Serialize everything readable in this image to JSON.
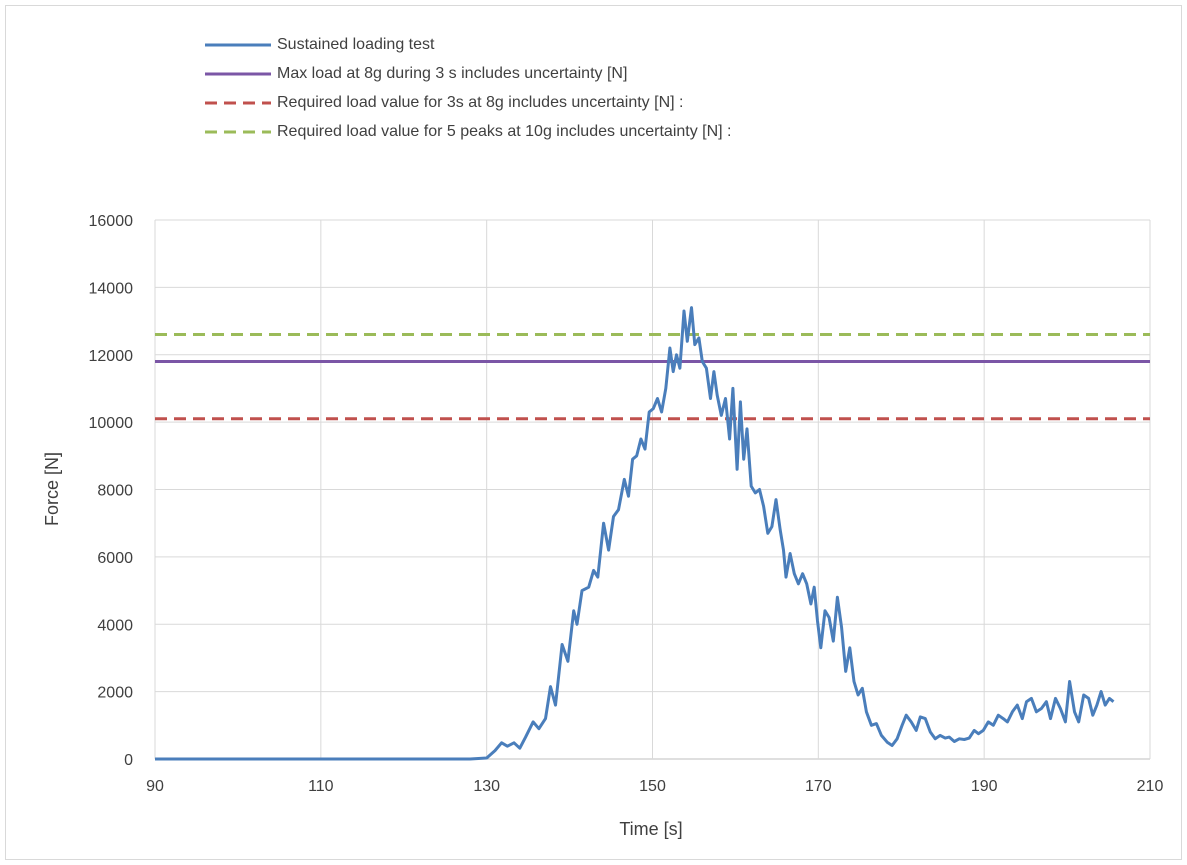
{
  "chart_data": {
    "type": "line",
    "title": "",
    "xlabel": "Time [s]",
    "ylabel": "Force [N]",
    "xlim": [
      90,
      210
    ],
    "ylim": [
      0,
      16000
    ],
    "x_ticks": [
      90,
      110,
      130,
      150,
      170,
      190,
      210
    ],
    "y_ticks": [
      0,
      2000,
      4000,
      6000,
      8000,
      10000,
      12000,
      14000,
      16000
    ],
    "grid": true,
    "legend_position": "top",
    "series": [
      {
        "name": "Sustained loading test",
        "color": "#4a7ebb",
        "style": "solid",
        "points": [
          [
            90,
            0
          ],
          [
            100,
            0
          ],
          [
            110,
            0
          ],
          [
            120,
            0
          ],
          [
            128,
            0
          ],
          [
            130,
            30
          ],
          [
            131,
            250
          ],
          [
            131.8,
            480
          ],
          [
            132.5,
            380
          ],
          [
            133.3,
            480
          ],
          [
            134,
            320
          ],
          [
            134.7,
            650
          ],
          [
            135.6,
            1100
          ],
          [
            136.3,
            900
          ],
          [
            137.1,
            1200
          ],
          [
            137.7,
            2150
          ],
          [
            138.3,
            1600
          ],
          [
            139.1,
            3400
          ],
          [
            139.8,
            2900
          ],
          [
            140.5,
            4400
          ],
          [
            140.9,
            4000
          ],
          [
            141.5,
            5000
          ],
          [
            142.3,
            5100
          ],
          [
            142.9,
            5600
          ],
          [
            143.4,
            5400
          ],
          [
            144.1,
            7000
          ],
          [
            144.7,
            6200
          ],
          [
            145.3,
            7200
          ],
          [
            145.9,
            7400
          ],
          [
            146.6,
            8300
          ],
          [
            147.1,
            7800
          ],
          [
            147.6,
            8900
          ],
          [
            148.1,
            9000
          ],
          [
            148.6,
            9500
          ],
          [
            149.1,
            9200
          ],
          [
            149.6,
            10300
          ],
          [
            150.1,
            10400
          ],
          [
            150.6,
            10700
          ],
          [
            151.1,
            10300
          ],
          [
            151.6,
            11000
          ],
          [
            152.1,
            12200
          ],
          [
            152.5,
            11500
          ],
          [
            152.9,
            12000
          ],
          [
            153.3,
            11600
          ],
          [
            153.8,
            13300
          ],
          [
            154.2,
            12400
          ],
          [
            154.7,
            13400
          ],
          [
            155.1,
            12300
          ],
          [
            155.6,
            12500
          ],
          [
            156,
            11800
          ],
          [
            156.5,
            11600
          ],
          [
            157,
            10700
          ],
          [
            157.4,
            11500
          ],
          [
            157.8,
            10800
          ],
          [
            158.3,
            10200
          ],
          [
            158.8,
            10700
          ],
          [
            159.3,
            9500
          ],
          [
            159.7,
            11000
          ],
          [
            160.2,
            8600
          ],
          [
            160.6,
            10600
          ],
          [
            161,
            8900
          ],
          [
            161.4,
            9800
          ],
          [
            161.9,
            8100
          ],
          [
            162.4,
            7900
          ],
          [
            162.9,
            8000
          ],
          [
            163.4,
            7500
          ],
          [
            163.9,
            6700
          ],
          [
            164.4,
            6900
          ],
          [
            164.9,
            7700
          ],
          [
            165.4,
            6800
          ],
          [
            165.8,
            6200
          ],
          [
            166.1,
            5400
          ],
          [
            166.6,
            6100
          ],
          [
            167.1,
            5500
          ],
          [
            167.6,
            5200
          ],
          [
            168.1,
            5500
          ],
          [
            168.6,
            5200
          ],
          [
            169.1,
            4600
          ],
          [
            169.5,
            5100
          ],
          [
            169.9,
            4100
          ],
          [
            170.3,
            3300
          ],
          [
            170.8,
            4400
          ],
          [
            171.3,
            4200
          ],
          [
            171.8,
            3500
          ],
          [
            172.3,
            4800
          ],
          [
            172.8,
            3900
          ],
          [
            173.3,
            2600
          ],
          [
            173.8,
            3300
          ],
          [
            174.3,
            2300
          ],
          [
            174.8,
            1900
          ],
          [
            175.3,
            2100
          ],
          [
            175.8,
            1400
          ],
          [
            176.4,
            1000
          ],
          [
            177,
            1050
          ],
          [
            177.6,
            700
          ],
          [
            178.3,
            500
          ],
          [
            178.9,
            400
          ],
          [
            179.5,
            600
          ],
          [
            180.1,
            1000
          ],
          [
            180.6,
            1300
          ],
          [
            181.2,
            1100
          ],
          [
            181.8,
            850
          ],
          [
            182.3,
            1250
          ],
          [
            182.9,
            1200
          ],
          [
            183.5,
            800
          ],
          [
            184.1,
            600
          ],
          [
            184.7,
            700
          ],
          [
            185.3,
            620
          ],
          [
            185.8,
            650
          ],
          [
            186.4,
            520
          ],
          [
            187,
            600
          ],
          [
            187.6,
            580
          ],
          [
            188.2,
            620
          ],
          [
            188.8,
            850
          ],
          [
            189.3,
            750
          ],
          [
            189.9,
            850
          ],
          [
            190.5,
            1100
          ],
          [
            191.1,
            1000
          ],
          [
            191.7,
            1300
          ],
          [
            192.3,
            1200
          ],
          [
            192.8,
            1100
          ],
          [
            193.4,
            1400
          ],
          [
            194,
            1600
          ],
          [
            194.6,
            1200
          ],
          [
            195.1,
            1700
          ],
          [
            195.7,
            1800
          ],
          [
            196.3,
            1400
          ],
          [
            196.9,
            1500
          ],
          [
            197.5,
            1700
          ],
          [
            198,
            1200
          ],
          [
            198.6,
            1800
          ],
          [
            199.2,
            1500
          ],
          [
            199.8,
            1100
          ],
          [
            200.3,
            2300
          ],
          [
            200.9,
            1400
          ],
          [
            201.4,
            1100
          ],
          [
            202,
            1900
          ],
          [
            202.6,
            1800
          ],
          [
            203.1,
            1300
          ],
          [
            203.6,
            1600
          ],
          [
            204.1,
            2000
          ],
          [
            204.6,
            1600
          ],
          [
            205.1,
            1800
          ],
          [
            205.6,
            1700
          ]
        ]
      },
      {
        "name": "Max load at 8g during 3 s includes uncertainty [N]",
        "color": "#7b56a6",
        "style": "solid",
        "y": 11800
      },
      {
        "name": "Required load value for 3s at 8g includes uncertainty [N] :",
        "color": "#c0504d",
        "style": "dashed",
        "y": 10100
      },
      {
        "name": "Required load value for 5 peaks at 10g includes uncertainty [N] :",
        "color": "#9bbb59",
        "style": "dashed",
        "y": 12600
      }
    ]
  }
}
